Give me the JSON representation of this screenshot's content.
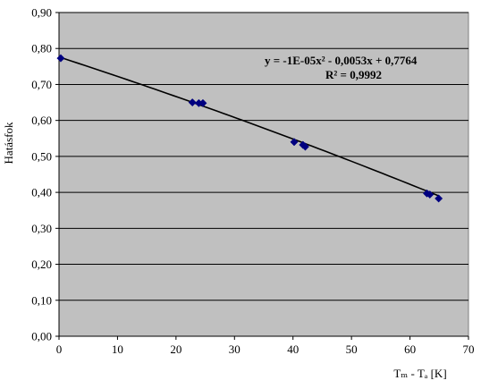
{
  "chart_data": {
    "type": "scatter",
    "xlabel": "Tₘ - Tₐ [K]",
    "ylabel": "Hatásfok",
    "xlim": [
      0,
      70
    ],
    "ylim": [
      0,
      0.9
    ],
    "x_ticks": [
      0,
      10,
      20,
      30,
      40,
      50,
      60,
      70
    ],
    "y_ticks": [
      0.0,
      0.1,
      0.2,
      0.3,
      0.4,
      0.5,
      0.6,
      0.7,
      0.8,
      0.9
    ],
    "x_tick_labels": [
      "0",
      "10",
      "20",
      "30",
      "40",
      "50",
      "60",
      "70"
    ],
    "y_tick_labels": [
      "0,00",
      "0,10",
      "0,20",
      "0,30",
      "0,40",
      "0,50",
      "0,60",
      "0,70",
      "0,80",
      "0,90"
    ],
    "grid": "horizontal",
    "series": [
      {
        "points": [
          {
            "x": 0.3,
            "y": 0.773
          },
          {
            "x": 22.8,
            "y": 0.65
          },
          {
            "x": 23.9,
            "y": 0.648
          },
          {
            "x": 24.6,
            "y": 0.648
          },
          {
            "x": 40.2,
            "y": 0.54
          },
          {
            "x": 41.7,
            "y": 0.532
          },
          {
            "x": 42.1,
            "y": 0.527
          },
          {
            "x": 62.9,
            "y": 0.397
          },
          {
            "x": 63.4,
            "y": 0.394
          },
          {
            "x": 64.9,
            "y": 0.383
          }
        ],
        "color": "#000080"
      }
    ],
    "trendline": {
      "type": "polynomial",
      "coefficients": {
        "a2": -1e-05,
        "a1": -0.0053,
        "a0": 0.7764
      },
      "x_range": [
        0,
        65
      ],
      "color": "#000000"
    },
    "annotations": {
      "equation": "y = -1E-05x² - 0,0053x + 0,7764",
      "r_squared": "R² = 0,9992"
    },
    "plot_background": "#c0c0c0"
  }
}
